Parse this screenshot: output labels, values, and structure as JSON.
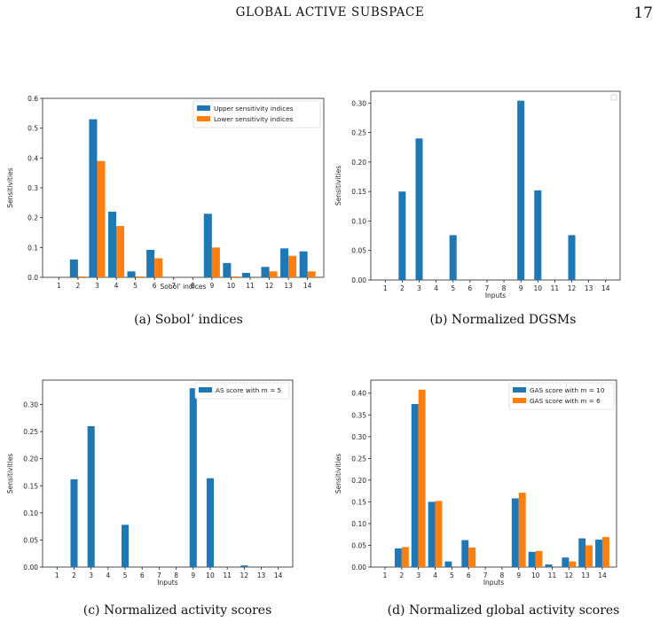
{
  "page": {
    "running_title": "GLOBAL ACTIVE SUBSPACE",
    "page_number": "17"
  },
  "colors": {
    "blue": "#1f77b4",
    "orange": "#ff7f0e"
  },
  "chart_data": [
    {
      "id": "a",
      "type": "bar",
      "caption": "(a) Sobol’ indices",
      "xlabel": "Sobol’ indices",
      "ylabel": "Sensitivities",
      "categories": [
        "1",
        "2",
        "3",
        "4",
        "5",
        "6",
        "7",
        "8",
        "9",
        "10",
        "11",
        "12",
        "13",
        "14"
      ],
      "ylim": [
        0,
        0.6
      ],
      "yticks": [
        "0.0",
        "0.1",
        "0.2",
        "0.3",
        "0.4",
        "0.5",
        "0.6"
      ],
      "legend_position": "top-right",
      "series": [
        {
          "name": "Upper sensitivity indices",
          "color": "#1f77b4",
          "values": [
            0,
            0.06,
            0.53,
            0.22,
            0.02,
            0.092,
            0,
            0,
            0.213,
            0.048,
            0.015,
            0.035,
            0.097,
            0.087
          ]
        },
        {
          "name": "Lower sensitivity indices",
          "color": "#ff7f0e",
          "values": [
            0,
            0.003,
            0.39,
            0.172,
            0.003,
            0.064,
            0,
            0,
            0.1,
            0.003,
            0,
            0.02,
            0.072,
            0.02
          ]
        }
      ]
    },
    {
      "id": "b",
      "type": "bar",
      "caption": "(b) Normalized DGSMs",
      "xlabel": "Inputs",
      "ylabel": "Sensitivities",
      "categories": [
        "1",
        "2",
        "3",
        "4",
        "5",
        "6",
        "7",
        "8",
        "9",
        "10",
        "11",
        "12",
        "13",
        "14"
      ],
      "ylim": [
        0,
        0.32
      ],
      "yticks": [
        "0.00",
        "0.05",
        "0.10",
        "0.15",
        "0.20",
        "0.25",
        "0.30"
      ],
      "legend_position": "top-right",
      "series": [
        {
          "color": "#1f77b4",
          "values": [
            0,
            0.15,
            0.24,
            0,
            0.076,
            0,
            0,
            0,
            0.304,
            0.152,
            0,
            0.076,
            0,
            0
          ]
        }
      ]
    },
    {
      "id": "c",
      "type": "bar",
      "caption": "(c) Normalized activity scores",
      "xlabel": "Inputs",
      "ylabel": "Sensitivities",
      "categories": [
        "1",
        "2",
        "3",
        "4",
        "5",
        "6",
        "7",
        "8",
        "9",
        "10",
        "11",
        "12",
        "13",
        "14"
      ],
      "ylim": [
        0,
        0.345
      ],
      "yticks": [
        "0.00",
        "0.05",
        "0.10",
        "0.15",
        "0.20",
        "0.25",
        "0.30"
      ],
      "legend_position": "top-right",
      "series": [
        {
          "name": "AS score with m = 5",
          "color": "#1f77b4",
          "values": [
            0,
            0.162,
            0.26,
            0,
            0.078,
            0,
            0,
            0,
            0.33,
            0.164,
            0,
            0.003,
            0,
            0
          ]
        }
      ]
    },
    {
      "id": "d",
      "type": "bar",
      "caption": "(d) Normalized global activity scores",
      "xlabel": "Inputs",
      "ylabel": "Sensitivities",
      "categories": [
        "1",
        "2",
        "3",
        "4",
        "5",
        "6",
        "7",
        "8",
        "9",
        "10",
        "11",
        "12",
        "13",
        "14"
      ],
      "ylim": [
        0,
        0.43
      ],
      "yticks": [
        "0.00",
        "0.05",
        "0.10",
        "0.15",
        "0.20",
        "0.25",
        "0.30",
        "0.35",
        "0.40"
      ],
      "legend_position": "top-right",
      "series": [
        {
          "name": "GAS score with m = 10",
          "color": "#1f77b4",
          "values": [
            0,
            0.043,
            0.375,
            0.15,
            0.013,
            0.062,
            0,
            0,
            0.158,
            0.035,
            0.006,
            0.022,
            0.066,
            0.063
          ]
        },
        {
          "name": "GAS score with m = 6",
          "color": "#ff7f0e",
          "values": [
            0,
            0.046,
            0.408,
            0.152,
            0,
            0.045,
            0,
            0,
            0.171,
            0.037,
            0,
            0.013,
            0.05,
            0.069
          ]
        }
      ]
    }
  ]
}
